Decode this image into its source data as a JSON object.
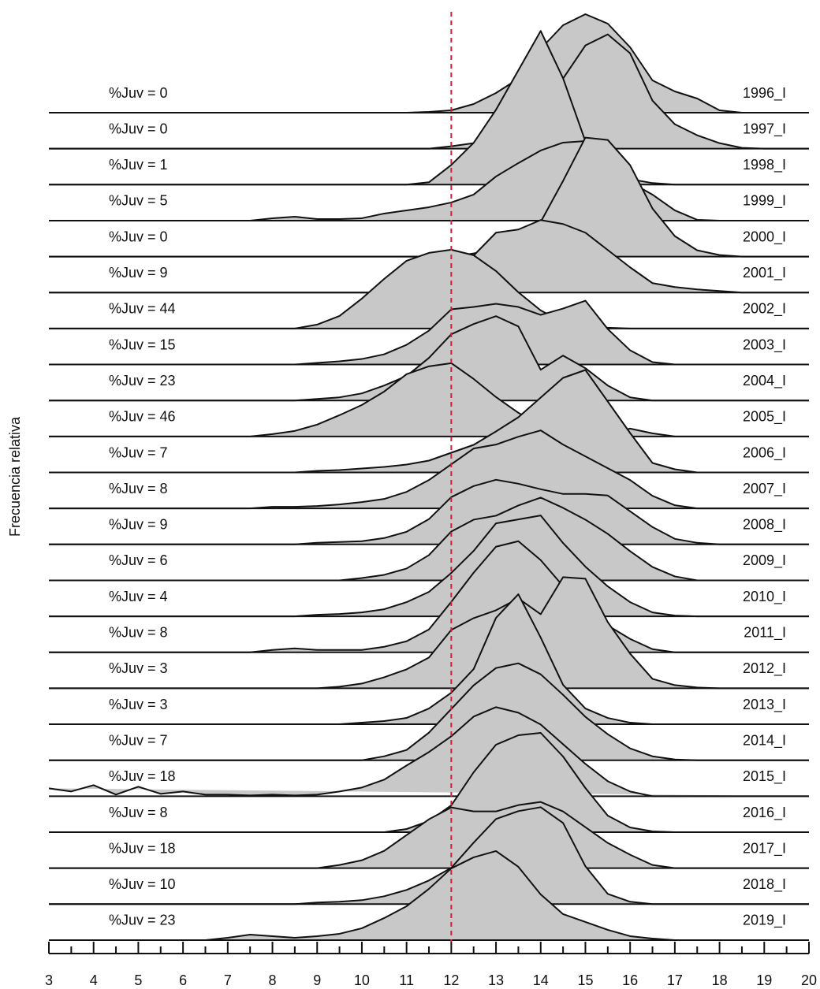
{
  "chart_data": {
    "type": "ridgeline",
    "ylabel": "Frecuencia relativa",
    "x": [
      3,
      3.5,
      4,
      4.5,
      5,
      5.5,
      6,
      6.5,
      7,
      7.5,
      8,
      8.5,
      9,
      9.5,
      10,
      10.5,
      11,
      11.5,
      12,
      12.5,
      13,
      13.5,
      14,
      14.5,
      15,
      15.5,
      16,
      16.5,
      17,
      17.5,
      18,
      18.5,
      19,
      19.5,
      20
    ],
    "xlim": [
      3,
      20
    ],
    "xticks": [
      3,
      4,
      5,
      6,
      7,
      8,
      9,
      10,
      11,
      12,
      13,
      14,
      15,
      16,
      17,
      18,
      19,
      20
    ],
    "xminorticks": [
      3.5,
      4.5,
      5.5,
      6.5,
      7.5,
      8.5,
      9.5,
      10.5,
      11.5,
      12.5,
      13.5,
      14.5,
      15.5,
      16.5,
      17.5,
      18.5,
      19.5
    ],
    "vline": 12,
    "vline_color": "#cc2233",
    "color": "#c8c8c8",
    "series": [
      {
        "name": "1996_I",
        "label": "%Juv = 0",
        "values": [
          0,
          0,
          0,
          0,
          0,
          0,
          0,
          0,
          0,
          0,
          0,
          0,
          0,
          0,
          0,
          0,
          0,
          0.002,
          0.006,
          0.022,
          0.05,
          0.086,
          0.162,
          0.222,
          0.25,
          0.226,
          0.166,
          0.082,
          0.054,
          0.036,
          0.006,
          0,
          0,
          0,
          0
        ]
      },
      {
        "name": "1997_I",
        "label": "%Juv = 0",
        "values": [
          0,
          0,
          0,
          0,
          0,
          0,
          0,
          0,
          0,
          0,
          0,
          0,
          0,
          0,
          0,
          0,
          0,
          0,
          0.006,
          0.014,
          0.038,
          0.078,
          0.142,
          0.178,
          0.262,
          0.29,
          0.242,
          0.122,
          0.062,
          0.034,
          0.014,
          0.002,
          0,
          0,
          0
        ]
      },
      {
        "name": "1998_I",
        "label": "%Juv = 1",
        "values": [
          0,
          0,
          0,
          0,
          0,
          0,
          0,
          0,
          0,
          0,
          0,
          0,
          0,
          0,
          0,
          0,
          0,
          0.006,
          0.05,
          0.106,
          0.19,
          0.29,
          0.39,
          0.27,
          0.11,
          0.04,
          0.014,
          0.004,
          0,
          0,
          0,
          0,
          0,
          0,
          0
        ]
      },
      {
        "name": "1999_I",
        "label": "%Juv = 5",
        "values": [
          0,
          0,
          0,
          0,
          0,
          0,
          0,
          0,
          0,
          0,
          0.006,
          0.01,
          0.004,
          0.004,
          0.006,
          0.018,
          0.026,
          0.034,
          0.046,
          0.066,
          0.112,
          0.146,
          0.178,
          0.198,
          0.202,
          0.162,
          0.098,
          0.066,
          0.026,
          0.002,
          0,
          0,
          0,
          0,
          0
        ]
      },
      {
        "name": "2000_I",
        "label": "%Juv = 0",
        "values": [
          0,
          0,
          0,
          0,
          0,
          0,
          0,
          0,
          0,
          0,
          0,
          0,
          0,
          0,
          0,
          0,
          0,
          0,
          0,
          0.008,
          0.02,
          0.052,
          0.088,
          0.192,
          0.302,
          0.296,
          0.232,
          0.122,
          0.052,
          0.016,
          0.004,
          0,
          0,
          0,
          0
        ]
      },
      {
        "name": "2001_I",
        "label": "%Juv = 9",
        "values": [
          0,
          0,
          0,
          0,
          0,
          0,
          0,
          0,
          0,
          0,
          0,
          0,
          0,
          0,
          0,
          0,
          0,
          0.012,
          0.04,
          0.094,
          0.152,
          0.16,
          0.184,
          0.174,
          0.152,
          0.108,
          0.064,
          0.024,
          0.014,
          0.008,
          0.004,
          0,
          0,
          0,
          0
        ]
      },
      {
        "name": "2002_I",
        "label": "%Juv = 44",
        "values": [
          0,
          0,
          0,
          0,
          0,
          0,
          0,
          0,
          0,
          0,
          0,
          0,
          0.01,
          0.032,
          0.076,
          0.126,
          0.172,
          0.192,
          0.2,
          0.186,
          0.146,
          0.092,
          0.046,
          0.016,
          0.006,
          0.002,
          0,
          0,
          0,
          0,
          0,
          0,
          0,
          0,
          0
        ]
      },
      {
        "name": "2003_I",
        "label": "%Juv = 15",
        "values": [
          0,
          0,
          0,
          0,
          0,
          0,
          0,
          0,
          0,
          0,
          0,
          0,
          0.004,
          0.008,
          0.014,
          0.026,
          0.05,
          0.086,
          0.14,
          0.146,
          0.154,
          0.146,
          0.126,
          0.142,
          0.162,
          0.09,
          0.036,
          0.006,
          0,
          0,
          0,
          0,
          0,
          0,
          0
        ]
      },
      {
        "name": "2004_I",
        "label": "%Juv = 23",
        "values": [
          0,
          0,
          0,
          0,
          0,
          0,
          0,
          0,
          0,
          0,
          0,
          0,
          0.004,
          0.008,
          0.018,
          0.038,
          0.062,
          0.108,
          0.168,
          0.194,
          0.214,
          0.188,
          0.078,
          0.114,
          0.082,
          0.038,
          0.008,
          0,
          0,
          0,
          0,
          0,
          0,
          0,
          0
        ]
      },
      {
        "name": "2005_I",
        "label": "%Juv = 46",
        "values": [
          0,
          0,
          0,
          0,
          0,
          0,
          0,
          0,
          0,
          0,
          0.006,
          0.014,
          0.03,
          0.054,
          0.08,
          0.114,
          0.158,
          0.178,
          0.186,
          0.146,
          0.1,
          0.06,
          0.03,
          0.014,
          0.006,
          0.004,
          0.02,
          0.008,
          0,
          0,
          0,
          0,
          0,
          0,
          0
        ]
      },
      {
        "name": "2006_I",
        "label": "%Juv = 7",
        "values": [
          0,
          0,
          0,
          0,
          0,
          0,
          0,
          0,
          0,
          0,
          0,
          0,
          0.004,
          0.006,
          0.01,
          0.014,
          0.02,
          0.03,
          0.05,
          0.07,
          0.104,
          0.14,
          0.19,
          0.24,
          0.26,
          0.18,
          0.1,
          0.024,
          0.008,
          0,
          0,
          0,
          0,
          0,
          0
        ]
      },
      {
        "name": "2007_I",
        "label": "%Juv = 8",
        "values": [
          0,
          0,
          0,
          0,
          0,
          0,
          0,
          0,
          0,
          0,
          0.004,
          0.004,
          0.006,
          0.01,
          0.016,
          0.024,
          0.042,
          0.072,
          0.112,
          0.152,
          0.162,
          0.182,
          0.198,
          0.162,
          0.132,
          0.102,
          0.072,
          0.032,
          0.008,
          0,
          0,
          0,
          0,
          0,
          0
        ]
      },
      {
        "name": "2008_I",
        "label": "%Juv = 9",
        "values": [
          0,
          0,
          0,
          0,
          0,
          0,
          0,
          0,
          0,
          0,
          0,
          0,
          0.004,
          0.006,
          0.008,
          0.016,
          0.032,
          0.064,
          0.12,
          0.148,
          0.164,
          0.154,
          0.14,
          0.128,
          0.128,
          0.124,
          0.084,
          0.044,
          0.014,
          0.004,
          0,
          0,
          0,
          0,
          0
        ]
      },
      {
        "name": "2009_I",
        "label": "%Juv = 6",
        "values": [
          0,
          0,
          0,
          0,
          0,
          0,
          0,
          0,
          0,
          0,
          0,
          0,
          0,
          0,
          0.006,
          0.014,
          0.03,
          0.064,
          0.124,
          0.154,
          0.164,
          0.19,
          0.21,
          0.184,
          0.154,
          0.118,
          0.074,
          0.034,
          0.01,
          0,
          0,
          0,
          0,
          0,
          0
        ]
      },
      {
        "name": "2010_I",
        "label": "%Juv = 4",
        "values": [
          0,
          0,
          0,
          0,
          0,
          0,
          0,
          0,
          0,
          0,
          0,
          0,
          0.004,
          0.006,
          0.01,
          0.018,
          0.036,
          0.062,
          0.11,
          0.166,
          0.236,
          0.246,
          0.256,
          0.186,
          0.126,
          0.076,
          0.036,
          0.01,
          0.002,
          0,
          0,
          0,
          0,
          0,
          0
        ]
      },
      {
        "name": "2011_I",
        "label": "%Juv = 8",
        "values": [
          0,
          0,
          0,
          0,
          0,
          0,
          0,
          0,
          0,
          0,
          0.006,
          0.01,
          0.006,
          0.006,
          0.006,
          0.014,
          0.028,
          0.058,
          0.128,
          0.202,
          0.268,
          0.282,
          0.234,
          0.168,
          0.118,
          0.068,
          0.034,
          0.008,
          0,
          0,
          0,
          0,
          0,
          0,
          0
        ]
      },
      {
        "name": "2012_I",
        "label": "%Juv = 3",
        "values": [
          0,
          0,
          0,
          0,
          0,
          0,
          0,
          0,
          0,
          0,
          0,
          0,
          0,
          0.004,
          0.012,
          0.028,
          0.048,
          0.078,
          0.148,
          0.178,
          0.198,
          0.228,
          0.188,
          0.282,
          0.278,
          0.168,
          0.088,
          0.024,
          0.008,
          0.002,
          0,
          0,
          0,
          0,
          0
        ]
      },
      {
        "name": "2013_I",
        "label": "%Juv = 3",
        "values": [
          0,
          0,
          0,
          0,
          0,
          0,
          0,
          0,
          0,
          0,
          0,
          0,
          0,
          0,
          0.004,
          0.008,
          0.016,
          0.04,
          0.08,
          0.14,
          0.27,
          0.33,
          0.22,
          0.1,
          0.04,
          0.016,
          0.004,
          0,
          0,
          0,
          0,
          0,
          0,
          0,
          0
        ]
      },
      {
        "name": "2014_I",
        "label": "%Juv = 7",
        "values": [
          0,
          0,
          0,
          0,
          0,
          0,
          0,
          0,
          0,
          0,
          0,
          0,
          0,
          0,
          0,
          0.01,
          0.026,
          0.07,
          0.13,
          0.19,
          0.234,
          0.246,
          0.218,
          0.166,
          0.11,
          0.066,
          0.03,
          0.01,
          0.002,
          0,
          0,
          0,
          0,
          0,
          0
        ]
      },
      {
        "name": "2015_I",
        "label": "%Juv = 18",
        "values": [
          0.02,
          0.012,
          0.028,
          0.004,
          0.024,
          0.006,
          0.012,
          0.004,
          0.004,
          0.002,
          0.004,
          0.002,
          0.004,
          0.012,
          0.022,
          0.042,
          0.078,
          0.112,
          0.152,
          0.202,
          0.226,
          0.212,
          0.182,
          0.132,
          0.082,
          0.038,
          0.012,
          0,
          0,
          0,
          0,
          0,
          0,
          0,
          0
        ]
      },
      {
        "name": "2016_I",
        "label": "%Juv = 8",
        "values": [
          0,
          0,
          0,
          0,
          0,
          0,
          0,
          0,
          0,
          0,
          0,
          0,
          0,
          0,
          0,
          0,
          0.008,
          0.028,
          0.068,
          0.152,
          0.222,
          0.246,
          0.252,
          0.192,
          0.112,
          0.042,
          0.012,
          0.002,
          0,
          0,
          0,
          0,
          0,
          0,
          0
        ]
      },
      {
        "name": "2017_I",
        "label": "%Juv = 18",
        "values": [
          0,
          0,
          0,
          0,
          0,
          0,
          0,
          0,
          0,
          0,
          0,
          0,
          0,
          0.008,
          0.02,
          0.044,
          0.084,
          0.124,
          0.154,
          0.144,
          0.144,
          0.16,
          0.168,
          0.144,
          0.104,
          0.064,
          0.034,
          0.008,
          0,
          0,
          0,
          0,
          0,
          0,
          0
        ]
      },
      {
        "name": "2018_I",
        "label": "%Juv = 10",
        "values": [
          0,
          0,
          0,
          0,
          0,
          0,
          0,
          0,
          0,
          0,
          0,
          0,
          0.004,
          0.006,
          0.01,
          0.02,
          0.036,
          0.06,
          0.092,
          0.156,
          0.216,
          0.236,
          0.246,
          0.206,
          0.096,
          0.026,
          0.006,
          0,
          0,
          0,
          0,
          0,
          0,
          0,
          0
        ]
      },
      {
        "name": "2019_I",
        "label": "%Juv = 23",
        "values": [
          0,
          0,
          0,
          0,
          0,
          0,
          0,
          0,
          0.006,
          0.014,
          0.01,
          0.006,
          0.01,
          0.016,
          0.03,
          0.056,
          0.086,
          0.13,
          0.182,
          0.21,
          0.226,
          0.186,
          0.116,
          0.066,
          0.046,
          0.026,
          0.01,
          0.004,
          0,
          0,
          0,
          0,
          0,
          0,
          0
        ]
      }
    ]
  }
}
